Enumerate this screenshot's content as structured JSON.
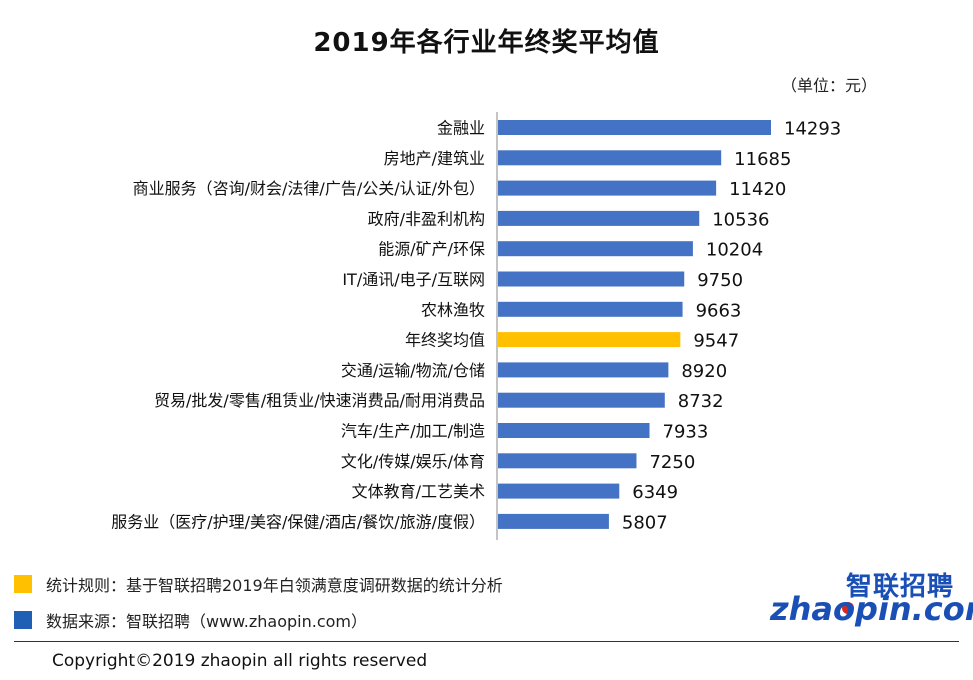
{
  "chart_data": {
    "type": "bar",
    "orientation": "horizontal",
    "title": "2019年各行业年终奖平均值",
    "unit_label": "（单位：元）",
    "categories": [
      "金融业",
      "房地产/建筑业",
      "商业服务（咨询/财会/法律/广告/公关/认证/外包）",
      "政府/非盈利机构",
      "能源/矿产/环保",
      "IT/通讯/电子/互联网",
      "农林渔牧",
      "年终奖均值",
      "交通/运输/物流/仓储",
      "贸易/批发/零售/租赁业/快速消费品/耐用消费品",
      "汽车/生产/加工/制造",
      "文化/传媒/娱乐/体育",
      "文体教育/工艺美术",
      "服务业（医疗/护理/美容/保健/酒店/餐饮/旅游/度假）"
    ],
    "values": [
      14293,
      11685,
      11420,
      10536,
      10204,
      9750,
      9663,
      9547,
      8920,
      8732,
      7933,
      7250,
      6349,
      5807
    ],
    "highlight_category": "年终奖均值",
    "bar_color": "#4472c4",
    "highlight_color": "#ffc000",
    "xlim": [
      0,
      16000
    ],
    "grid": false,
    "value_labels": true
  },
  "legend": {
    "rule_text": "统计规则：基于智联招聘2019年白领满意度调研数据的统计分析",
    "rule_color": "#ffc000",
    "source_text": "数据来源：智联招聘（www.zhaopin.com）",
    "source_color": "#1f5fb4"
  },
  "logo": {
    "cn": "智联招聘",
    "en": "zhaopin.com"
  },
  "copyright": "Copyright©2019 zhaopin all rights reserved"
}
